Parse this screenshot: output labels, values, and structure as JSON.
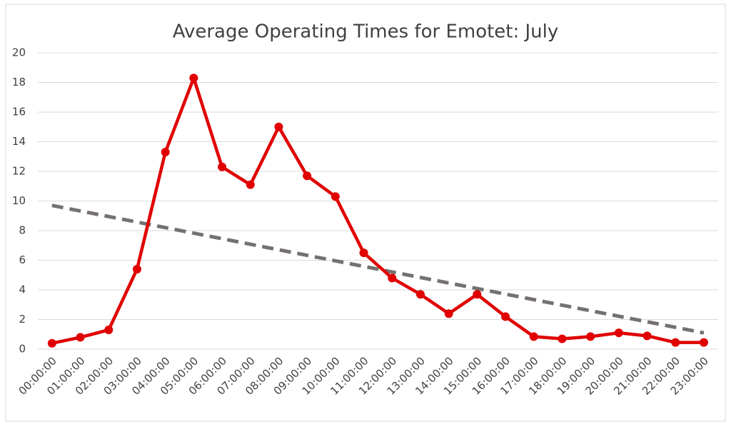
{
  "chart_data": {
    "type": "line",
    "title": "Average Operating Times for Emotet: July",
    "categories": [
      "00:00:00",
      "01:00:00",
      "02:00:00",
      "03:00:00",
      "04:00:00",
      "05:00:00",
      "06:00:00",
      "07:00:00",
      "08:00:00",
      "09:00:00",
      "10:00:00",
      "11:00:00",
      "12:00:00",
      "13:00:00",
      "14:00:00",
      "15:00:00",
      "16:00:00",
      "17:00:00",
      "18:00:00",
      "19:00:00",
      "20:00:00",
      "21:00:00",
      "22:00:00",
      "23:00:00"
    ],
    "values": [
      0.4,
      0.8,
      1.3,
      5.4,
      13.3,
      18.3,
      12.3,
      11.1,
      15.0,
      11.7,
      10.3,
      6.5,
      4.8,
      3.7,
      2.4,
      3.7,
      2.2,
      0.85,
      0.7,
      0.85,
      1.1,
      0.9,
      0.45,
      0.45
    ],
    "color": "#e00000",
    "trendline": {
      "color": "#767171",
      "values": [
        9.7,
        1.1
      ]
    },
    "ylim": [
      0,
      20
    ],
    "yticks": [
      0,
      2,
      4,
      6,
      8,
      10,
      12,
      14,
      16,
      18,
      20
    ],
    "grid": true
  }
}
